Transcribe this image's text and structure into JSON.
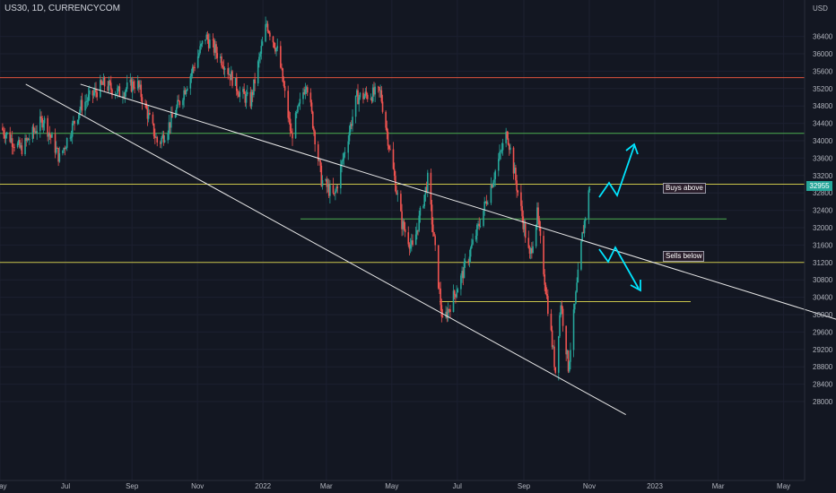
{
  "header": {
    "symbol_line": "US30, 1D, CURRENCYCOM"
  },
  "chart_data": {
    "type": "candlestick",
    "symbol": "US30",
    "interval": "1D",
    "source": "CURRENCYCOM",
    "y_unit": "USD",
    "ylim": [
      27600,
      36900
    ],
    "y_ticks": [
      28000,
      28400,
      28800,
      29200,
      29600,
      30000,
      30400,
      30800,
      31200,
      31600,
      32000,
      32400,
      32800,
      33200,
      33600,
      34000,
      34400,
      34800,
      35200,
      35600,
      36000,
      36400
    ],
    "x_ticks": [
      "May",
      "Jul",
      "Sep",
      "Nov",
      "2022",
      "Mar",
      "May",
      "Jul",
      "Sep",
      "Nov",
      "2023",
      "Mar",
      "May"
    ],
    "x_tick_dates": [
      "2021-05-01",
      "2021-07-01",
      "2021-09-01",
      "2021-11-01",
      "2022-01-01",
      "2022-03-01",
      "2022-05-01",
      "2022-07-01",
      "2022-09-01",
      "2022-11-01",
      "2023-01-01",
      "2023-03-01",
      "2023-05-01"
    ],
    "last_price": "32955",
    "price_path": [
      [
        "2021-05-01",
        34300
      ],
      [
        "2021-05-20",
        33800
      ],
      [
        "2021-06-10",
        34500
      ],
      [
        "2021-06-25",
        33600
      ],
      [
        "2021-07-15",
        34800
      ],
      [
        "2021-08-05",
        35300
      ],
      [
        "2021-08-20",
        35100
      ],
      [
        "2021-09-05",
        35350
      ],
      [
        "2021-09-25",
        33900
      ],
      [
        "2021-10-10",
        34600
      ],
      [
        "2021-10-28",
        35700
      ],
      [
        "2021-11-08",
        36400
      ],
      [
        "2021-11-25",
        35800
      ],
      [
        "2021-12-10",
        35100
      ],
      [
        "2021-12-20",
        34900
      ],
      [
        "2022-01-04",
        36700
      ],
      [
        "2022-01-15",
        36000
      ],
      [
        "2022-01-27",
        34100
      ],
      [
        "2022-02-10",
        35400
      ],
      [
        "2022-02-24",
        33100
      ],
      [
        "2022-03-08",
        32700
      ],
      [
        "2022-03-29",
        35000
      ],
      [
        "2022-04-20",
        35100
      ],
      [
        "2022-05-10",
        32100
      ],
      [
        "2022-05-20",
        31500
      ],
      [
        "2022-06-03",
        33100
      ],
      [
        "2022-06-17",
        29800
      ],
      [
        "2022-07-05",
        30900
      ],
      [
        "2022-07-20",
        32000
      ],
      [
        "2022-08-16",
        34200
      ],
      [
        "2022-09-06",
        31300
      ],
      [
        "2022-09-13",
        32300
      ],
      [
        "2022-09-30",
        28700
      ],
      [
        "2022-10-05",
        30300
      ],
      [
        "2022-10-12",
        28800
      ],
      [
        "2022-10-25",
        31800
      ],
      [
        "2022-11-01",
        32955
      ]
    ],
    "horizontal_levels": [
      {
        "price": 35450,
        "color": "#e0533d"
      },
      {
        "price": 34170,
        "color": "#4caf50"
      },
      {
        "price": 33000,
        "color": "#c9c44a"
      },
      {
        "price": 32200,
        "color": "#4caf50"
      },
      {
        "price": 31200,
        "color": "#c9c44a"
      },
      {
        "price": 30300,
        "color": "#c9c44a"
      }
    ],
    "channel_lines": [
      {
        "from": [
          "2021-07-15",
          35300
        ],
        "to": [
          "2023-07-01",
          29800
        ],
        "color": "#e8e8e8"
      },
      {
        "from": [
          "2021-05-25",
          35300
        ],
        "to": [
          "2022-12-05",
          27700
        ],
        "color": "#e8e8e8"
      }
    ],
    "annotations": {
      "buys_above": "Buys above",
      "sells_below": "Sells below"
    },
    "projection_arrows": [
      {
        "direction": "up",
        "color": "#00e5ff"
      },
      {
        "direction": "down",
        "color": "#00e5ff"
      }
    ],
    "colors": {
      "up": "#26a69a",
      "down": "#ef5350",
      "background": "#131722",
      "text": "#b2b5be"
    }
  }
}
